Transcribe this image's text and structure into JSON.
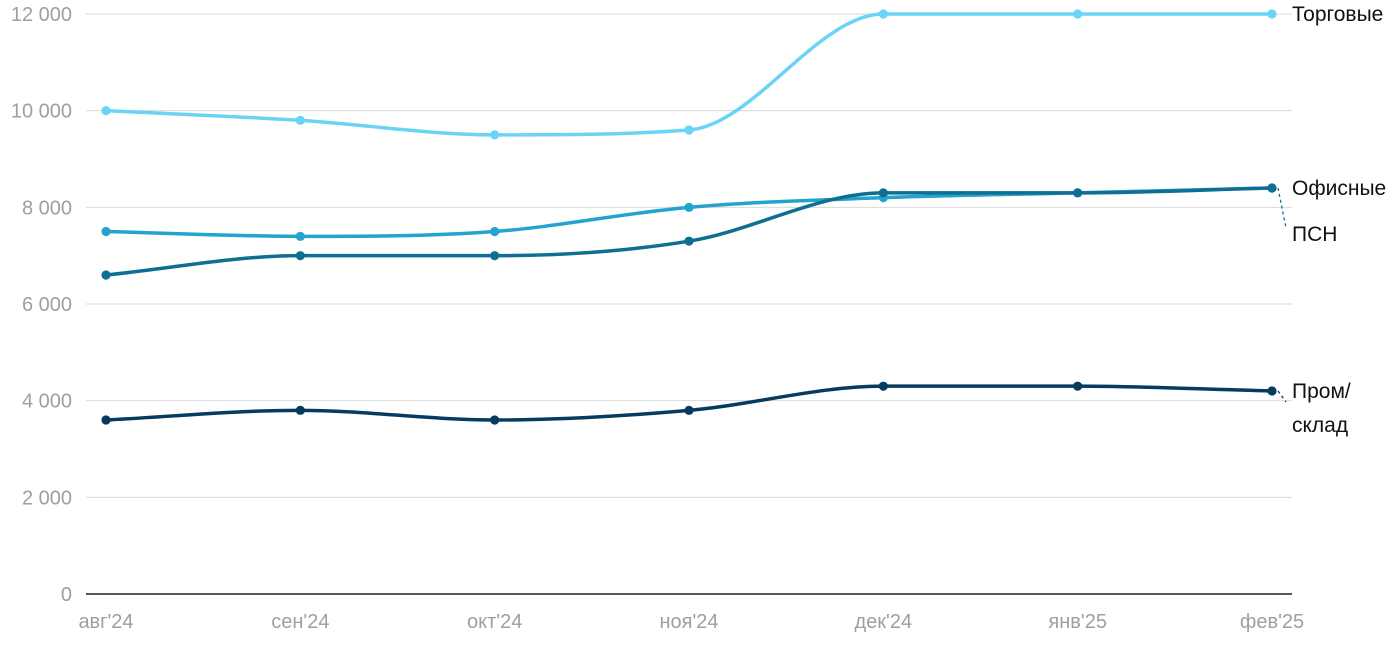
{
  "chart_data": {
    "type": "line",
    "title": "",
    "xlabel": "",
    "ylabel": "",
    "categories": [
      "авг'24",
      "сен'24",
      "окт'24",
      "ноя'24",
      "дек'24",
      "янв'25",
      "фев'25"
    ],
    "ylim": [
      0,
      12000
    ],
    "yticks": [
      0,
      2000,
      4000,
      6000,
      8000,
      10000,
      12000
    ],
    "ytick_labels": [
      "0",
      "2 000",
      "4 000",
      "6 000",
      "8 000",
      "10 000",
      "12 000"
    ],
    "grid": "horizontal",
    "legend": "right",
    "series": [
      {
        "name": "Торговые",
        "color": "#6ad4f6",
        "values": [
          10000,
          9800,
          9500,
          9600,
          12000,
          12000,
          12000
        ],
        "label_lines": [
          "Торговые"
        ]
      },
      {
        "name": "Офисные",
        "color": "#24a3cf",
        "values": [
          7500,
          7400,
          7500,
          8000,
          8200,
          8300,
          8400
        ],
        "label_lines": [
          "Офисные"
        ]
      },
      {
        "name": "ПСН",
        "color": "#0e6f92",
        "values": [
          6600,
          7000,
          7000,
          7300,
          8300,
          8300,
          8400
        ],
        "label_lines": [
          "ПСН"
        ]
      },
      {
        "name": "Пром/склад",
        "color": "#063b5e",
        "values": [
          3600,
          3800,
          3600,
          3800,
          4300,
          4300,
          4200
        ],
        "label_lines": [
          "Пром/",
          "склад"
        ]
      }
    ]
  }
}
